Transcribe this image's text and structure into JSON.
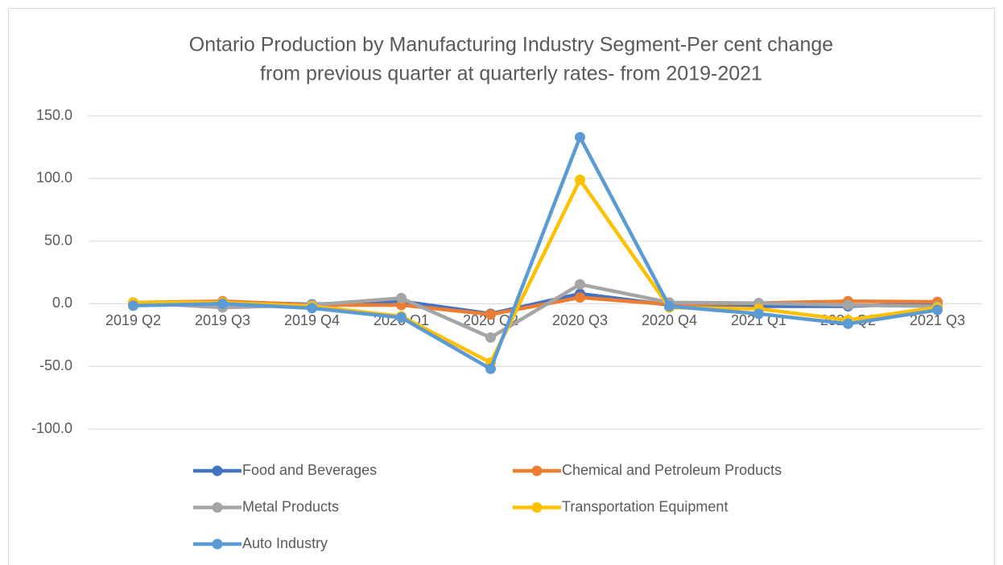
{
  "chart_data": {
    "type": "line",
    "title": [
      "Ontario Production by Manufacturing Industry Segment-Per cent change",
      "from previous quarter at quarterly rates-  from 2019-2021"
    ],
    "categories": [
      "2019 Q2",
      "2019 Q3",
      "2019 Q4",
      "2020 Q1",
      "2020 Q2",
      "2020 Q3",
      "2020 Q4",
      "2021 Q1",
      "2021 Q2",
      "2021 Q3"
    ],
    "series": [
      {
        "name": "Food and Beverages",
        "color": "#4472c4",
        "values": [
          0.5,
          1.5,
          -0.5,
          2,
          -8,
          8,
          -1,
          -2,
          -2,
          0.5
        ]
      },
      {
        "name": "Chemical and Petroleum Products",
        "color": "#ed7d31",
        "values": [
          1,
          2,
          -1,
          -1,
          -8.5,
          5,
          -0.5,
          0.5,
          2,
          1.5
        ]
      },
      {
        "name": "Metal Products",
        "color": "#a5a5a5",
        "values": [
          1,
          -3,
          -1,
          4.5,
          -27,
          15.5,
          1,
          0.5,
          -1,
          -2
        ]
      },
      {
        "name": "Transportation Equipment",
        "color": "#ffc000",
        "values": [
          1,
          1,
          -2,
          -10,
          -47,
          99,
          -3,
          -4,
          -13,
          -3
        ]
      },
      {
        "name": "Auto Industry",
        "color": "#5b9bd5",
        "values": [
          -1.5,
          0,
          -3.5,
          -11,
          -52,
          133,
          -2,
          -8,
          -16,
          -5
        ]
      }
    ],
    "ylim": [
      -100,
      150
    ],
    "yticks": [
      {
        "value": -100,
        "label": "-100.0"
      },
      {
        "value": -50,
        "label": "-50.0"
      },
      {
        "value": 0,
        "label": "0.0"
      },
      {
        "value": 50,
        "label": "50.0"
      },
      {
        "value": 100,
        "label": "100.0"
      },
      {
        "value": 150,
        "label": "150.0"
      }
    ],
    "grid": true,
    "legend": "bottom"
  }
}
